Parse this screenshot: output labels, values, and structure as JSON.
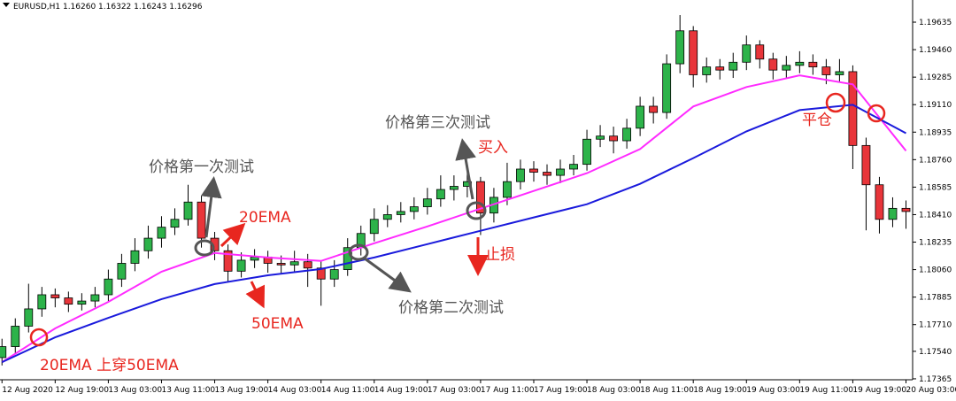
{
  "chart_data": {
    "type": "candlestick",
    "header": "EURUSD,H1  1.16260 1.16322 1.16243 1.16296",
    "candles": {
      "x": [
        0,
        2,
        4,
        6,
        8,
        10,
        12,
        14,
        16,
        18,
        20,
        22,
        24,
        26,
        28,
        30,
        32,
        34,
        36,
        38,
        40,
        42,
        44,
        46,
        48,
        50,
        52,
        54,
        56,
        58,
        60,
        62,
        64,
        66,
        68,
        70,
        72,
        74,
        76,
        78,
        80,
        82,
        84,
        86,
        88,
        90,
        92,
        94,
        96,
        98,
        100,
        102,
        104,
        106,
        108,
        110,
        112,
        114,
        116,
        118,
        120,
        122,
        124,
        126,
        128,
        130,
        132,
        134,
        136
      ],
      "open": [
        1.175,
        1.1757,
        1.177,
        1.1781,
        1.179,
        1.1788,
        1.1784,
        1.1786,
        1.179,
        1.18,
        1.181,
        1.1818,
        1.1826,
        1.1833,
        1.1838,
        1.1849,
        1.1826,
        1.1818,
        1.1805,
        1.1812,
        1.1814,
        1.181,
        1.1809,
        1.1811,
        1.1807,
        1.18,
        1.1806,
        1.182,
        1.1829,
        1.1838,
        1.1841,
        1.1843,
        1.1846,
        1.1851,
        1.1857,
        1.1859,
        1.1862,
        1.1842,
        1.1852,
        1.1862,
        1.187,
        1.1868,
        1.1866,
        1.187,
        1.1873,
        1.1889,
        1.1891,
        1.1888,
        1.1896,
        1.191,
        1.1906,
        1.1937,
        1.1958,
        1.193,
        1.1935,
        1.1933,
        1.1938,
        1.1949,
        1.194,
        1.1933,
        1.1936,
        1.1938,
        1.1935,
        1.193,
        1.1932,
        1.1885,
        1.186,
        1.1838,
        1.1845
      ],
      "high": [
        1.1762,
        1.1775,
        1.1797,
        1.1795,
        1.1794,
        1.1792,
        1.1791,
        1.1795,
        1.1806,
        1.1816,
        1.1826,
        1.1834,
        1.184,
        1.1845,
        1.186,
        1.1853,
        1.183,
        1.1822,
        1.1817,
        1.1819,
        1.1818,
        1.1815,
        1.1818,
        1.1816,
        1.1812,
        1.1812,
        1.1826,
        1.1834,
        1.1845,
        1.1847,
        1.1849,
        1.1852,
        1.1858,
        1.1866,
        1.1866,
        1.1868,
        1.1865,
        1.1858,
        1.1874,
        1.1876,
        1.1875,
        1.1873,
        1.1876,
        1.1879,
        1.1895,
        1.1898,
        1.1897,
        1.1902,
        1.1916,
        1.1916,
        1.1943,
        1.1968,
        1.1961,
        1.1941,
        1.194,
        1.1944,
        1.1955,
        1.1952,
        1.1944,
        1.1942,
        1.1945,
        1.1943,
        1.194,
        1.194,
        1.1936,
        1.189,
        1.1865,
        1.1852,
        1.185
      ],
      "low": [
        1.1745,
        1.1752,
        1.1766,
        1.1776,
        1.1782,
        1.1779,
        1.178,
        1.1782,
        1.1786,
        1.1795,
        1.1805,
        1.1813,
        1.182,
        1.1828,
        1.1834,
        1.182,
        1.1812,
        1.1798,
        1.1801,
        1.1807,
        1.1804,
        1.1803,
        1.1804,
        1.1795,
        1.1783,
        1.1795,
        1.1802,
        1.1815,
        1.1824,
        1.1833,
        1.1836,
        1.1838,
        1.1841,
        1.1846,
        1.185,
        1.1852,
        1.1828,
        1.1836,
        1.1847,
        1.1857,
        1.1862,
        1.186,
        1.1861,
        1.1866,
        1.1869,
        1.1884,
        1.188,
        1.1883,
        1.1891,
        1.1899,
        1.1902,
        1.1931,
        1.1922,
        1.1925,
        1.1927,
        1.1928,
        1.1933,
        1.1934,
        1.1927,
        1.1928,
        1.1931,
        1.193,
        1.1924,
        1.1925,
        1.187,
        1.1831,
        1.1829,
        1.1833,
        1.1832
      ],
      "close": [
        1.1757,
        1.177,
        1.1781,
        1.179,
        1.1788,
        1.1784,
        1.1786,
        1.179,
        1.18,
        1.181,
        1.1818,
        1.1826,
        1.1833,
        1.1838,
        1.1849,
        1.1826,
        1.1818,
        1.1805,
        1.1812,
        1.1814,
        1.181,
        1.1809,
        1.1811,
        1.1807,
        1.18,
        1.1806,
        1.182,
        1.1829,
        1.1838,
        1.1841,
        1.1843,
        1.1846,
        1.1851,
        1.1857,
        1.1859,
        1.1862,
        1.1842,
        1.1852,
        1.1862,
        1.187,
        1.1868,
        1.1866,
        1.187,
        1.1873,
        1.1889,
        1.1891,
        1.1888,
        1.1896,
        1.191,
        1.1906,
        1.1937,
        1.1958,
        1.193,
        1.1935,
        1.1933,
        1.1938,
        1.1949,
        1.194,
        1.1933,
        1.1936,
        1.1938,
        1.1935,
        1.193,
        1.1932,
        1.1885,
        1.186,
        1.1838,
        1.1845,
        1.1843
      ],
      "up_color": "#2db34a",
      "down_color": "#e8353a"
    },
    "lines": [
      {
        "color": "#ff2bff",
        "x": [
          0,
          8,
          16,
          24,
          32,
          40,
          48,
          56,
          64,
          72,
          80,
          88,
          96,
          104,
          112,
          120,
          128,
          136
        ],
        "values": [
          1.17471,
          1.17686,
          1.17855,
          1.18047,
          1.18166,
          1.18137,
          1.18115,
          1.18228,
          1.18335,
          1.18448,
          1.18561,
          1.18674,
          1.18827,
          1.19098,
          1.19222,
          1.19296,
          1.19239,
          1.18816
        ]
      },
      {
        "color": "#1a1adc",
        "x": [
          0,
          8,
          16,
          24,
          32,
          40,
          48,
          56,
          64,
          72,
          80,
          88,
          96,
          104,
          112,
          120,
          128,
          136
        ],
        "values": [
          1.17471,
          1.17629,
          1.17753,
          1.17872,
          1.17968,
          1.18024,
          1.18064,
          1.18137,
          1.18222,
          1.18307,
          1.18392,
          1.18476,
          1.18606,
          1.1877,
          1.1894,
          1.19075,
          1.19109,
          1.18928
        ]
      }
    ],
    "xlim": [
      -0.3,
      137
    ],
    "ylim": [
      1.17359,
      1.19776
    ],
    "xticks": [
      {
        "value": 0,
        "label": "12 Aug 2020"
      },
      {
        "value": 8,
        "label": "12 Aug 19:00"
      },
      {
        "value": 16,
        "label": "13 Aug 03:00"
      },
      {
        "value": 24,
        "label": "13 Aug 11:00"
      },
      {
        "value": 32,
        "label": "13 Aug 19:00"
      },
      {
        "value": 40,
        "label": "14 Aug 03:00"
      },
      {
        "value": 48,
        "label": "14 Aug 11:00"
      },
      {
        "value": 56,
        "label": "14 Aug 19:00"
      },
      {
        "value": 64,
        "label": "17 Aug 03:00"
      },
      {
        "value": 72,
        "label": "17 Aug 11:00"
      },
      {
        "value": 80,
        "label": "17 Aug 19:00"
      },
      {
        "value": 88,
        "label": "18 Aug 03:00"
      },
      {
        "value": 96,
        "label": "18 Aug 11:00"
      },
      {
        "value": 104,
        "label": "18 Aug 19:00"
      },
      {
        "value": 112,
        "label": "19 Aug 03:00"
      },
      {
        "value": 120,
        "label": "19 Aug 11:00"
      },
      {
        "value": 128,
        "label": "19 Aug 19:00"
      },
      {
        "value": 136,
        "label": "20 Aug 03:00"
      }
    ],
    "yticks": [
      1.19635,
      {
        "value": 1.1946,
        "label": "1.19460"
      },
      1.19285,
      {
        "value": 1.1911,
        "label": "1.19110"
      },
      1.18935,
      {
        "value": 1.1876,
        "label": "1.18760"
      },
      1.18585,
      {
        "value": 1.1841,
        "label": "1.18410"
      },
      1.18235,
      {
        "value": 1.1806,
        "label": "1.18060"
      },
      1.17885,
      {
        "value": 1.1771,
        "label": "1.17710"
      },
      {
        "value": 1.1754,
        "label": "1.17540"
      },
      1.17365
    ],
    "annotations": {
      "first_test": "价格第一次测试",
      "second_test": "价格第二次测试",
      "third_test": "价格第三次测试",
      "ema20": "20EMA",
      "ema50": "50EMA",
      "cross": "20EMA 上穿50EMA",
      "buy": "买入",
      "stop": "止损",
      "close_position": "平仓"
    }
  }
}
